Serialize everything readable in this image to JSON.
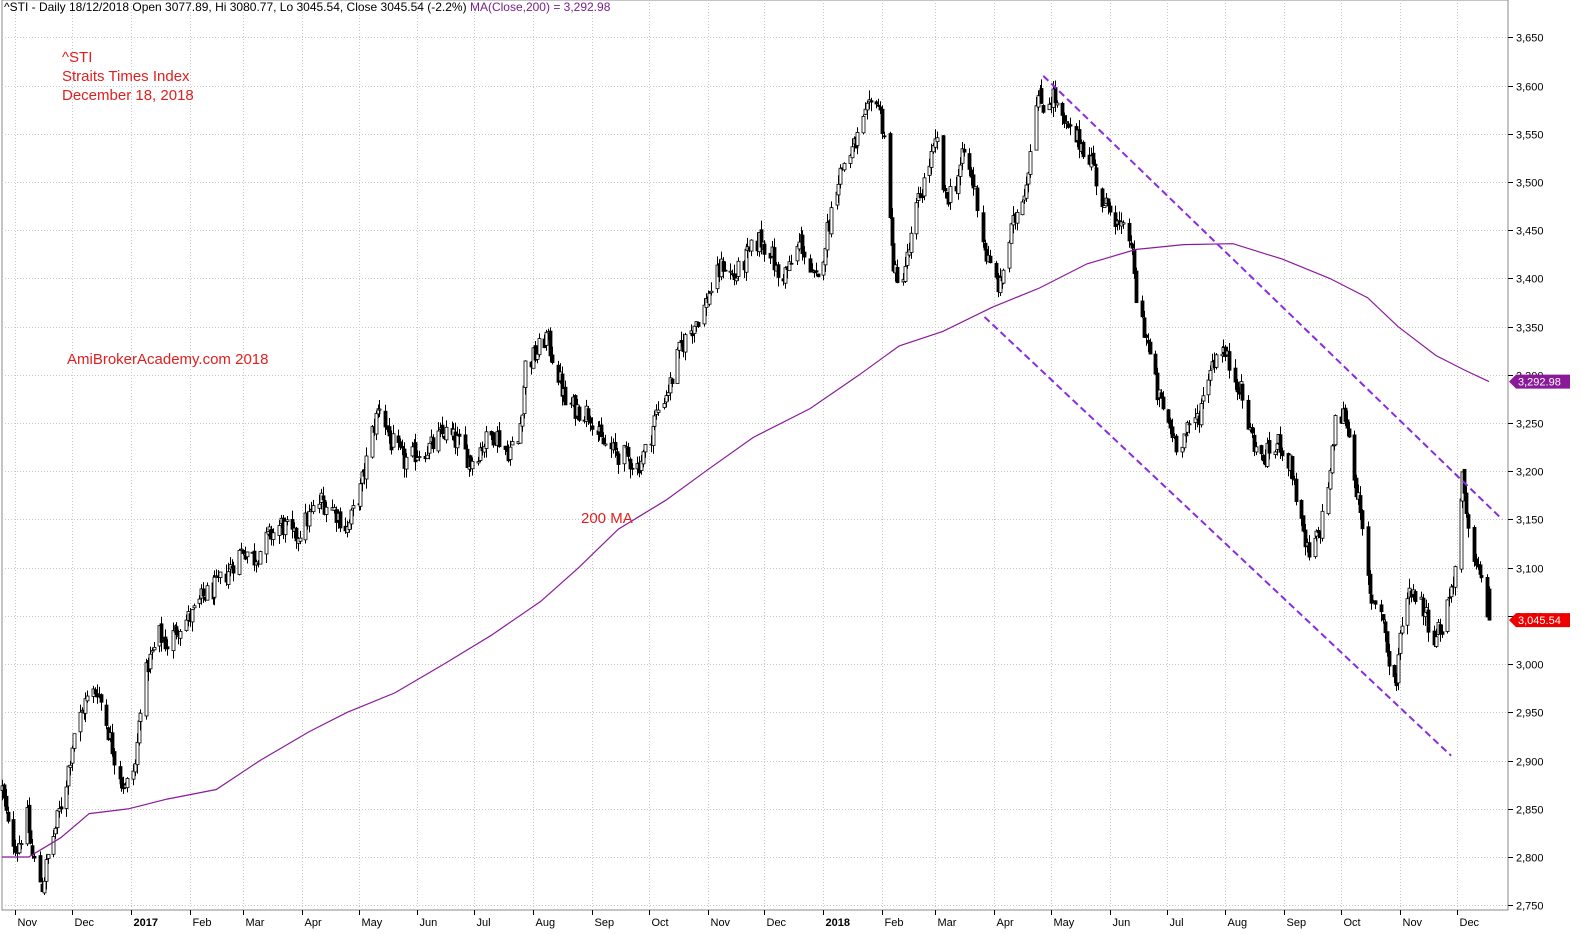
{
  "header": {
    "prefix": "^STI - Daily 18/12/2018 Open 3077.89, Hi 3080.77, Lo 3045.54, Close 3045.54 (-2.2%)",
    "ma_text": "MA(Close,200) = 3,292.98"
  },
  "annotations": {
    "title_line1": "^STI",
    "title_line2": "Straits Times Index",
    "title_line3": "December 18, 2018",
    "website": "AmiBrokerAcademy.com  2018",
    "ma_label": "200 MA"
  },
  "colors": {
    "background": "#ffffff",
    "grid": "#c8c8c8",
    "candle": "#000000",
    "ma_line": "#8b1a9b",
    "channel": "#8a2be2",
    "annotation": "#e02020",
    "close_marker": "#ee0000",
    "ma_marker": "#8b1a9b"
  },
  "chart_data": {
    "type": "candlestick",
    "ylim": [
      2745,
      3670
    ],
    "y_ticks": [
      2750,
      2800,
      2850,
      2900,
      2950,
      3000,
      3050,
      3100,
      3150,
      3200,
      3250,
      3300,
      3350,
      3400,
      3450,
      3500,
      3550,
      3600,
      3650
    ],
    "y_tick_labels": [
      "2,750",
      "2,800",
      "2,850",
      "2,900",
      "2,950",
      "3,000",
      "3,050",
      "3,100",
      "3,150",
      "3,200",
      "3,250",
      "3,300",
      "3,350",
      "3,400",
      "3,450",
      "3,500",
      "3,550",
      "3,600",
      "3,650"
    ],
    "x_range": [
      "2016-10-25",
      "2018-12-28"
    ],
    "months": [
      {
        "label": "Nov",
        "date": "2016-11-01"
      },
      {
        "label": "Dec",
        "date": "2016-12-01"
      },
      {
        "label": "2017",
        "date": "2017-01-01",
        "bold": true
      },
      {
        "label": "Feb",
        "date": "2017-02-01"
      },
      {
        "label": "Mar",
        "date": "2017-03-01"
      },
      {
        "label": "Apr",
        "date": "2017-04-01"
      },
      {
        "label": "May",
        "date": "2017-05-01"
      },
      {
        "label": "Jun",
        "date": "2017-06-01"
      },
      {
        "label": "Jul",
        "date": "2017-07-01"
      },
      {
        "label": "Aug",
        "date": "2017-08-01"
      },
      {
        "label": "Sep",
        "date": "2017-09-01"
      },
      {
        "label": "Oct",
        "date": "2017-10-01"
      },
      {
        "label": "Nov",
        "date": "2017-11-01"
      },
      {
        "label": "Dec",
        "date": "2017-12-01"
      },
      {
        "label": "2018",
        "date": "2018-01-01",
        "bold": true
      },
      {
        "label": "Feb",
        "date": "2018-02-01"
      },
      {
        "label": "Mar",
        "date": "2018-03-01"
      },
      {
        "label": "Apr",
        "date": "2018-04-01"
      },
      {
        "label": "May",
        "date": "2018-05-01"
      },
      {
        "label": "Jun",
        "date": "2018-06-01"
      },
      {
        "label": "Jul",
        "date": "2018-07-01"
      },
      {
        "label": "Aug",
        "date": "2018-08-01"
      },
      {
        "label": "Sep",
        "date": "2018-09-01"
      },
      {
        "label": "Oct",
        "date": "2018-10-01"
      },
      {
        "label": "Nov",
        "date": "2018-11-01"
      },
      {
        "label": "Dec",
        "date": "2018-12-01"
      }
    ],
    "price_path": [
      [
        "2016-10-25",
        2870
      ],
      [
        "2016-10-28",
        2830
      ],
      [
        "2016-11-02",
        2810
      ],
      [
        "2016-11-07",
        2840
      ],
      [
        "2016-11-10",
        2800
      ],
      [
        "2016-11-15",
        2770
      ],
      [
        "2016-11-18",
        2800
      ],
      [
        "2016-11-22",
        2830
      ],
      [
        "2016-11-28",
        2880
      ],
      [
        "2016-12-02",
        2930
      ],
      [
        "2016-12-08",
        2960
      ],
      [
        "2016-12-14",
        2975
      ],
      [
        "2016-12-19",
        2940
      ],
      [
        "2016-12-23",
        2905
      ],
      [
        "2016-12-29",
        2870
      ],
      [
        "2017-01-03",
        2895
      ],
      [
        "2017-01-06",
        2960
      ],
      [
        "2017-01-10",
        3000
      ],
      [
        "2017-01-16",
        3030
      ],
      [
        "2017-01-20",
        3020
      ],
      [
        "2017-01-26",
        3040
      ],
      [
        "2017-02-02",
        3050
      ],
      [
        "2017-02-08",
        3070
      ],
      [
        "2017-02-15",
        3080
      ],
      [
        "2017-02-22",
        3100
      ],
      [
        "2017-03-01",
        3120
      ],
      [
        "2017-03-07",
        3110
      ],
      [
        "2017-03-14",
        3130
      ],
      [
        "2017-03-21",
        3145
      ],
      [
        "2017-03-28",
        3130
      ],
      [
        "2017-04-04",
        3150
      ],
      [
        "2017-04-11",
        3170
      ],
      [
        "2017-04-18",
        3160
      ],
      [
        "2017-04-25",
        3140
      ],
      [
        "2017-05-02",
        3180
      ],
      [
        "2017-05-08",
        3240
      ],
      [
        "2017-05-12",
        3270
      ],
      [
        "2017-05-18",
        3230
      ],
      [
        "2017-05-25",
        3210
      ],
      [
        "2017-06-01",
        3220
      ],
      [
        "2017-06-08",
        3225
      ],
      [
        "2017-06-15",
        3240
      ],
      [
        "2017-06-22",
        3230
      ],
      [
        "2017-06-29",
        3210
      ],
      [
        "2017-07-06",
        3230
      ],
      [
        "2017-07-12",
        3240
      ],
      [
        "2017-07-18",
        3220
      ],
      [
        "2017-07-24",
        3230
      ],
      [
        "2017-07-28",
        3310
      ],
      [
        "2017-08-02",
        3320
      ],
      [
        "2017-08-08",
        3340
      ],
      [
        "2017-08-14",
        3300
      ],
      [
        "2017-08-18",
        3270
      ],
      [
        "2017-08-24",
        3265
      ],
      [
        "2017-08-31",
        3260
      ],
      [
        "2017-09-06",
        3230
      ],
      [
        "2017-09-12",
        3220
      ],
      [
        "2017-09-19",
        3215
      ],
      [
        "2017-09-25",
        3205
      ],
      [
        "2017-09-29",
        3220
      ],
      [
        "2017-10-05",
        3260
      ],
      [
        "2017-10-12",
        3290
      ],
      [
        "2017-10-18",
        3330
      ],
      [
        "2017-10-24",
        3350
      ],
      [
        "2017-10-30",
        3370
      ],
      [
        "2017-11-03",
        3390
      ],
      [
        "2017-11-09",
        3415
      ],
      [
        "2017-11-15",
        3400
      ],
      [
        "2017-11-21",
        3420
      ],
      [
        "2017-11-28",
        3440
      ],
      [
        "2017-12-04",
        3430
      ],
      [
        "2017-12-08",
        3400
      ],
      [
        "2017-12-14",
        3410
      ],
      [
        "2017-12-20",
        3440
      ],
      [
        "2017-12-26",
        3400
      ],
      [
        "2017-12-29",
        3395
      ],
      [
        "2018-01-03",
        3450
      ],
      [
        "2018-01-08",
        3500
      ],
      [
        "2018-01-12",
        3520
      ],
      [
        "2018-01-18",
        3540
      ],
      [
        "2018-01-24",
        3570
      ],
      [
        "2018-01-29",
        3590
      ],
      [
        "2018-02-02",
        3550
      ],
      [
        "2018-02-06",
        3430
      ],
      [
        "2018-02-09",
        3390
      ],
      [
        "2018-02-14",
        3420
      ],
      [
        "2018-02-20",
        3480
      ],
      [
        "2018-02-26",
        3520
      ],
      [
        "2018-03-02",
        3540
      ],
      [
        "2018-03-06",
        3480
      ],
      [
        "2018-03-12",
        3500
      ],
      [
        "2018-03-16",
        3530
      ],
      [
        "2018-03-22",
        3490
      ],
      [
        "2018-03-27",
        3430
      ],
      [
        "2018-03-30",
        3410
      ],
      [
        "2018-04-04",
        3390
      ],
      [
        "2018-04-09",
        3440
      ],
      [
        "2018-04-13",
        3470
      ],
      [
        "2018-04-18",
        3500
      ],
      [
        "2018-04-23",
        3590
      ],
      [
        "2018-04-27",
        3580
      ],
      [
        "2018-05-02",
        3590
      ],
      [
        "2018-05-07",
        3560
      ],
      [
        "2018-05-11",
        3550
      ],
      [
        "2018-05-17",
        3540
      ],
      [
        "2018-05-23",
        3520
      ],
      [
        "2018-05-29",
        3470
      ],
      [
        "2018-06-01",
        3480
      ],
      [
        "2018-06-06",
        3450
      ],
      [
        "2018-06-12",
        3440
      ],
      [
        "2018-06-15",
        3380
      ],
      [
        "2018-06-20",
        3340
      ],
      [
        "2018-06-26",
        3280
      ],
      [
        "2018-07-02",
        3250
      ],
      [
        "2018-07-06",
        3230
      ],
      [
        "2018-07-12",
        3240
      ],
      [
        "2018-07-18",
        3260
      ],
      [
        "2018-07-24",
        3310
      ],
      [
        "2018-07-30",
        3330
      ],
      [
        "2018-08-03",
        3310
      ],
      [
        "2018-08-08",
        3290
      ],
      [
        "2018-08-14",
        3240
      ],
      [
        "2018-08-20",
        3210
      ],
      [
        "2018-08-24",
        3220
      ],
      [
        "2018-08-30",
        3230
      ],
      [
        "2018-09-05",
        3200
      ],
      [
        "2018-09-11",
        3130
      ],
      [
        "2018-09-14",
        3110
      ],
      [
        "2018-09-20",
        3140
      ],
      [
        "2018-09-25",
        3200
      ],
      [
        "2018-09-28",
        3250
      ],
      [
        "2018-10-03",
        3260
      ],
      [
        "2018-10-08",
        3200
      ],
      [
        "2018-10-11",
        3150
      ],
      [
        "2018-10-16",
        3070
      ],
      [
        "2018-10-22",
        3060
      ],
      [
        "2018-10-26",
        3000
      ],
      [
        "2018-10-30",
        2980
      ],
      [
        "2018-11-02",
        3050
      ],
      [
        "2018-11-07",
        3080
      ],
      [
        "2018-11-13",
        3060
      ],
      [
        "2018-11-19",
        3030
      ],
      [
        "2018-11-23",
        3040
      ],
      [
        "2018-11-27",
        3070
      ],
      [
        "2018-11-30",
        3100
      ],
      [
        "2018-12-04",
        3190
      ],
      [
        "2018-12-07",
        3130
      ],
      [
        "2018-12-11",
        3110
      ],
      [
        "2018-12-14",
        3080
      ],
      [
        "2018-12-18",
        3045.54
      ]
    ],
    "last_bar": {
      "date": "2018-12-18",
      "open": 3077.89,
      "high": 3080.77,
      "low": 3045.54,
      "close": 3045.54
    },
    "series": [
      {
        "name": "MA(Close,200)",
        "points": [
          [
            "2016-10-25",
            2800
          ],
          [
            "2016-11-08",
            2800
          ],
          [
            "2016-11-25",
            2820
          ],
          [
            "2016-12-10",
            2845
          ],
          [
            "2016-12-31",
            2850
          ],
          [
            "2017-01-20",
            2860
          ],
          [
            "2017-02-15",
            2870
          ],
          [
            "2017-03-10",
            2900
          ],
          [
            "2017-04-05",
            2930
          ],
          [
            "2017-04-25",
            2950
          ],
          [
            "2017-05-20",
            2970
          ],
          [
            "2017-06-15",
            3000
          ],
          [
            "2017-07-10",
            3030
          ],
          [
            "2017-08-05",
            3065
          ],
          [
            "2017-08-25",
            3100
          ],
          [
            "2017-09-15",
            3140
          ],
          [
            "2017-10-10",
            3170
          ],
          [
            "2017-10-31",
            3200
          ],
          [
            "2017-11-25",
            3235
          ],
          [
            "2017-12-25",
            3265
          ],
          [
            "2018-01-20",
            3300
          ],
          [
            "2018-02-10",
            3330
          ],
          [
            "2018-03-05",
            3345
          ],
          [
            "2018-03-31",
            3370
          ],
          [
            "2018-04-25",
            3390
          ],
          [
            "2018-05-20",
            3415
          ],
          [
            "2018-06-15",
            3430
          ],
          [
            "2018-07-10",
            3435
          ],
          [
            "2018-08-05",
            3436
          ],
          [
            "2018-08-31",
            3420
          ],
          [
            "2018-09-25",
            3400
          ],
          [
            "2018-10-15",
            3380
          ],
          [
            "2018-10-31",
            3350
          ],
          [
            "2018-11-20",
            3320
          ],
          [
            "2018-12-05",
            3305
          ],
          [
            "2018-12-18",
            3292.98
          ]
        ],
        "last": 3292.98,
        "last_label": "3,292.98"
      }
    ],
    "channel_lines": [
      {
        "name": "upper-trendline",
        "points": [
          [
            "2018-04-27",
            3610
          ],
          [
            "2018-12-25",
            3150
          ]
        ]
      },
      {
        "name": "lower-trendline",
        "points": [
          [
            "2018-03-27",
            3360
          ],
          [
            "2018-11-28",
            2905
          ]
        ]
      }
    ],
    "close_marker": {
      "value": 3045.54,
      "label": "3,045.54"
    }
  }
}
